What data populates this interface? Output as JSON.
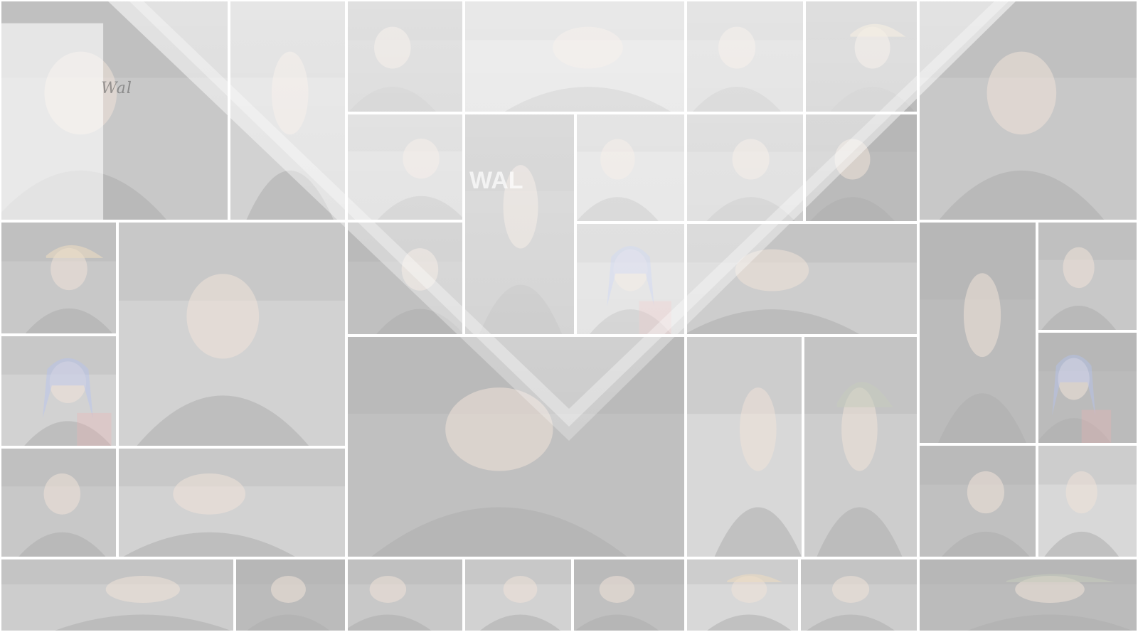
{
  "page": {
    "background_color": "#fafafa",
    "overlay_color": "#ffffff"
  },
  "collage": {
    "logo_text": "Wal",
    "apron_text": "WAL",
    "tile_tones": [
      "#6e6e6e",
      "#8a8a8a",
      "#5a5a5a",
      "#9a9a9a",
      "#7c7c7c",
      "#4e4e4e"
    ],
    "accent_colors": {
      "blue_hair": "#3a5fd8",
      "red_plaid": "#c83a3a",
      "tan_cap": "#c9a25e",
      "skin": "#d8b49a"
    }
  }
}
